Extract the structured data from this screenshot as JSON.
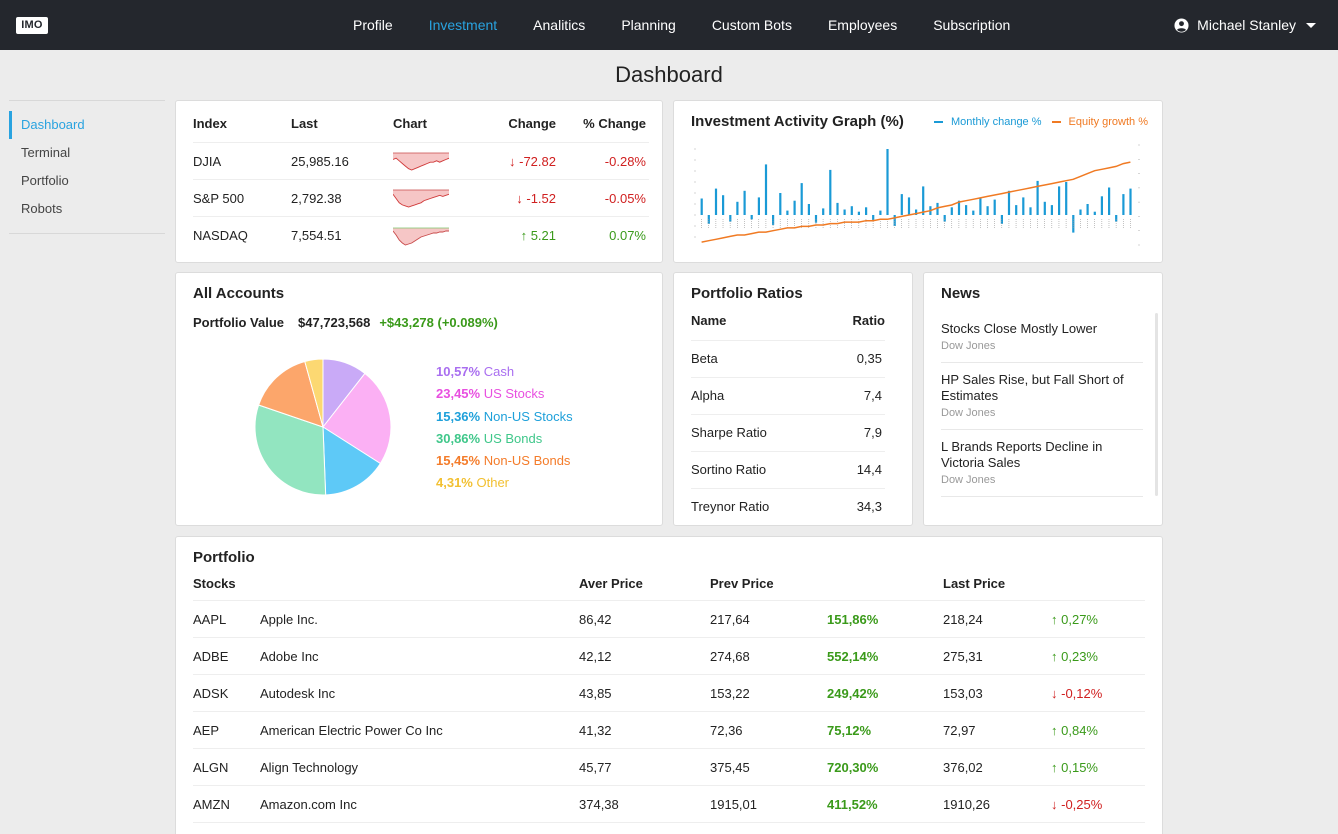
{
  "app": {
    "logo": "IMO"
  },
  "nav": {
    "items": [
      {
        "label": "Profile",
        "active": false
      },
      {
        "label": "Investment",
        "active": true
      },
      {
        "label": "Analitics",
        "active": false
      },
      {
        "label": "Planning",
        "active": false
      },
      {
        "label": "Custom Bots",
        "active": false
      },
      {
        "label": "Employees",
        "active": false
      },
      {
        "label": "Subscription",
        "active": false
      }
    ]
  },
  "user": {
    "name": "Michael Stanley",
    "icon": "user-circle-icon"
  },
  "page": {
    "title": "Dashboard"
  },
  "sidebar": {
    "items": [
      {
        "label": "Dashboard",
        "active": true
      },
      {
        "label": "Terminal",
        "active": false
      },
      {
        "label": "Portfolio",
        "active": false
      },
      {
        "label": "Robots",
        "active": false
      }
    ]
  },
  "indices": {
    "headers": {
      "index": "Index",
      "last": "Last",
      "chart": "Chart",
      "change": "Change",
      "pct": "% Change"
    },
    "rows": [
      {
        "name": "DJIA",
        "last": "25,985.16",
        "change": "-72.82",
        "pct": "-0.28%",
        "dir": "down",
        "spark": [
          5,
          4,
          6,
          8,
          10,
          12,
          13,
          12,
          11,
          10,
          9,
          8,
          7,
          7,
          6,
          7,
          6,
          5,
          4
        ]
      },
      {
        "name": "S&P 500",
        "last": "2,792.38",
        "change": "-1.52",
        "pct": "-0.05%",
        "dir": "down",
        "spark": [
          4,
          8,
          12,
          14,
          15,
          16,
          15,
          14,
          13,
          12,
          10,
          9,
          8,
          7,
          6,
          5,
          6,
          5,
          4
        ]
      },
      {
        "name": "NASDAQ",
        "last": "7,554.51",
        "change": "5.21",
        "pct": "0.07%",
        "dir": "up",
        "spark": [
          3,
          7,
          12,
          15,
          17,
          16,
          15,
          13,
          11,
          9,
          8,
          7,
          6,
          5,
          5,
          4,
          4,
          3,
          3
        ]
      }
    ]
  },
  "activity": {
    "title": "Investment Activity Graph (%)",
    "legend": {
      "monthly": "Monthly change %",
      "equity": "Equity growth %"
    },
    "colors": {
      "monthly": "#1a9ad6",
      "equity": "#f07a23"
    }
  },
  "chart_data": {
    "type": "bar",
    "series": [
      {
        "name": "Monthly change %",
        "values": [
          1.5,
          -0.8,
          2.4,
          1.8,
          -0.6,
          1.2,
          2.2,
          -0.4,
          1.6,
          4.6,
          -0.9,
          2.0,
          0.4,
          1.3,
          2.9,
          1.0,
          -0.7,
          0.6,
          4.1,
          1.1,
          0.5,
          0.8,
          0.3,
          0.7,
          -0.5,
          0.4,
          6.0,
          -1.0,
          1.9,
          1.6,
          0.5,
          2.6,
          0.8,
          1.1,
          -0.6,
          0.7,
          1.3,
          0.9,
          0.4,
          1.5,
          0.8,
          1.4,
          -0.8,
          2.2,
          0.9,
          1.6,
          0.7,
          3.1,
          1.2,
          0.9,
          2.6,
          3.0,
          -1.6,
          0.5,
          1.0,
          0.3,
          1.7,
          2.5,
          -0.6,
          1.9,
          2.4
        ]
      },
      {
        "name": "Equity growth %",
        "type": "line",
        "values": [
          2,
          3,
          4,
          5,
          6,
          7,
          7,
          8,
          9,
          9,
          10,
          11,
          12,
          12,
          13,
          13,
          14,
          14,
          15,
          15,
          16,
          16,
          16,
          17,
          17,
          18,
          18,
          19,
          20,
          21,
          22,
          23,
          24,
          26,
          27,
          28,
          30,
          31,
          32,
          33,
          34,
          35,
          36,
          37,
          38,
          39,
          40,
          41,
          42,
          43,
          44,
          45,
          46,
          48,
          50,
          52,
          53,
          54,
          55,
          57,
          58
        ]
      }
    ]
  },
  "accounts": {
    "title": "All Accounts",
    "portfolio_label": "Portfolio Value",
    "portfolio_value": "$47,723,568",
    "portfolio_change": "+$43,278 (+0.089%)",
    "allocation": [
      {
        "pct": "10,57%",
        "label": "Cash",
        "value": 10.57,
        "color": "#c9aaf7",
        "text_color": "#a96ef0"
      },
      {
        "pct": "23,45%",
        "label": "US Stocks",
        "value": 23.45,
        "color": "#fbb0f4",
        "text_color": "#e84fe0"
      },
      {
        "pct": "15,36%",
        "label": "Non-US Stocks",
        "value": 15.36,
        "color": "#5ec9f7",
        "text_color": "#1ea0da"
      },
      {
        "pct": "30,86%",
        "label": "US Bonds",
        "value": 30.86,
        "color": "#92e5c0",
        "text_color": "#3fc78a"
      },
      {
        "pct": "15,45%",
        "label": "Non-US Bonds",
        "value": 15.45,
        "color": "#fca66b",
        "text_color": "#f47c2a"
      },
      {
        "pct": "4,31%",
        "label": "Other",
        "value": 4.31,
        "color": "#fcd872",
        "text_color": "#f2c031"
      }
    ]
  },
  "ratios": {
    "title": "Portfolio Ratios",
    "headers": {
      "name": "Name",
      "ratio": "Ratio"
    },
    "rows": [
      {
        "name": "Beta",
        "value": "0,35"
      },
      {
        "name": "Alpha",
        "value": "7,4"
      },
      {
        "name": "Sharpe Ratio",
        "value": "7,9"
      },
      {
        "name": "Sortino Ratio",
        "value": "14,4"
      },
      {
        "name": "Treynor Ratio",
        "value": "34,3"
      }
    ]
  },
  "news": {
    "title": "News",
    "items": [
      {
        "title": "Stocks Close Mostly Lower",
        "source": "Dow Jones"
      },
      {
        "title": "HP Sales Rise, but Fall Short of Estimates",
        "source": "Dow Jones"
      },
      {
        "title": "L Brands Reports Decline in Victoria Sales",
        "source": "Dow Jones"
      }
    ]
  },
  "portfolio": {
    "title": "Portfolio",
    "headers": {
      "stocks": "Stocks",
      "aver": "Aver Price",
      "prev": "Prev Price",
      "last": "Last Price"
    },
    "rows": [
      {
        "ticker": "AAPL",
        "name": "Apple Inc.",
        "aver": "86,42",
        "prev": "217,64",
        "gain": "151,86%",
        "last": "218,24",
        "change": "0,27%",
        "dir": "up"
      },
      {
        "ticker": "ADBE",
        "name": "Adobe Inc",
        "aver": "42,12",
        "prev": "274,68",
        "gain": "552,14%",
        "last": "275,31",
        "change": "0,23%",
        "dir": "up"
      },
      {
        "ticker": "ADSK",
        "name": "Autodesk Inc",
        "aver": "43,85",
        "prev": "153,22",
        "gain": "249,42%",
        "last": "153,03",
        "change": "-0,12%",
        "dir": "down"
      },
      {
        "ticker": "AEP",
        "name": "American Electric Power Co Inc",
        "aver": "41,32",
        "prev": "72,36",
        "gain": "75,12%",
        "last": "72,97",
        "change": "0,84%",
        "dir": "up"
      },
      {
        "ticker": "ALGN",
        "name": "Align Technology",
        "aver": "45,77",
        "prev": "375,45",
        "gain": "720,30%",
        "last": "376,02",
        "change": "0,15%",
        "dir": "up"
      },
      {
        "ticker": "AMZN",
        "name": "Amazon.com Inc",
        "aver": "374,38",
        "prev": "1915,01",
        "gain": "411,52%",
        "last": "1910,26",
        "change": "-0,25%",
        "dir": "down"
      }
    ]
  }
}
